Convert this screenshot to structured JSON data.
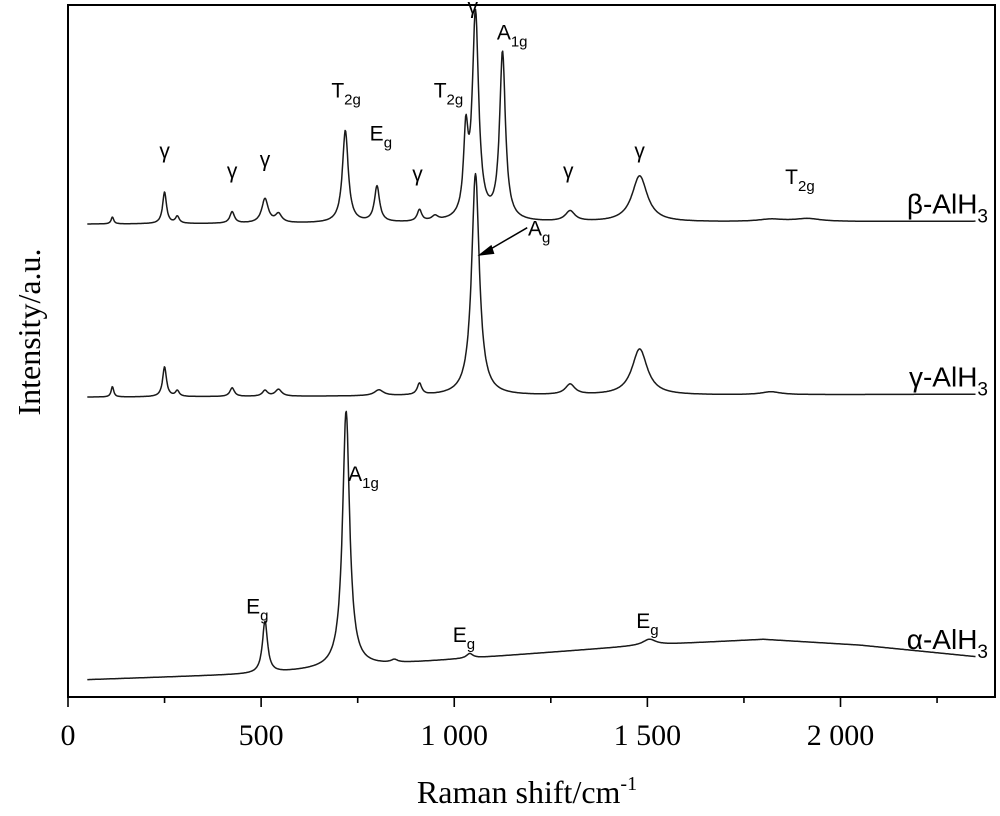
{
  "chart_data": {
    "type": "line",
    "xlabel": "Raman shift/cm",
    "xlabel_sup": "-1",
    "ylabel": "Intensity/a.u.",
    "xlim": [
      0,
      2400
    ],
    "ylim": [
      0,
      12
    ],
    "xticks": [
      {
        "value": 0,
        "label": "0"
      },
      {
        "value": 500,
        "label": "500"
      },
      {
        "value": 1000,
        "label": "1 000"
      },
      {
        "value": 1500,
        "label": "1 500"
      },
      {
        "value": 2000,
        "label": "2 000"
      }
    ],
    "xticks_minor": [
      250,
      750,
      1250,
      1750,
      2250
    ],
    "grid": false,
    "legend": "none",
    "series": [
      {
        "name": "β-AlH",
        "name_sub": "3",
        "baseline": 8.2,
        "background": [
          [
            50,
            0.0
          ],
          [
            2350,
            0.05
          ]
        ],
        "peaks": [
          {
            "x": 115,
            "h": 0.12,
            "w": 4
          },
          {
            "x": 250,
            "h": 0.55,
            "w": 6
          },
          {
            "x": 283,
            "h": 0.12,
            "w": 6
          },
          {
            "x": 425,
            "h": 0.2,
            "w": 7
          },
          {
            "x": 510,
            "h": 0.42,
            "w": 10
          },
          {
            "x": 545,
            "h": 0.15,
            "w": 10
          },
          {
            "x": 718,
            "h": 1.6,
            "w": 9
          },
          {
            "x": 800,
            "h": 0.62,
            "w": 8
          },
          {
            "x": 910,
            "h": 0.2,
            "w": 7
          },
          {
            "x": 950,
            "h": 0.08,
            "w": 10
          },
          {
            "x": 1030,
            "h": 1.35,
            "w": 7
          },
          {
            "x": 1055,
            "h": 3.55,
            "w": 10
          },
          {
            "x": 1125,
            "h": 2.9,
            "w": 9
          },
          {
            "x": 1300,
            "h": 0.18,
            "w": 15
          },
          {
            "x": 1480,
            "h": 0.8,
            "w": 24
          },
          {
            "x": 1820,
            "h": 0.04,
            "w": 40
          },
          {
            "x": 1915,
            "h": 0.05,
            "w": 40
          }
        ],
        "annotations": [
          {
            "x": 250,
            "y": 9.35,
            "text": "γ",
            "sub": ""
          },
          {
            "x": 425,
            "y": 9.0,
            "text": "γ",
            "sub": ""
          },
          {
            "x": 510,
            "y": 9.2,
            "text": "γ",
            "sub": ""
          },
          {
            "x": 720,
            "y": 10.4,
            "text": "T",
            "sub": "2g"
          },
          {
            "x": 810,
            "y": 9.65,
            "text": "E",
            "sub": "g"
          },
          {
            "x": 905,
            "y": 8.95,
            "text": "γ",
            "sub": ""
          },
          {
            "x": 985,
            "y": 10.4,
            "text": "T",
            "sub": "2g"
          },
          {
            "x": 1048,
            "y": 11.85,
            "text": "γ",
            "sub": ""
          },
          {
            "x": 1150,
            "y": 11.4,
            "text": "A",
            "sub": "1g"
          },
          {
            "x": 1295,
            "y": 9.0,
            "text": "γ",
            "sub": ""
          },
          {
            "x": 1480,
            "y": 9.35,
            "text": "γ",
            "sub": ""
          },
          {
            "x": 1895,
            "y": 8.9,
            "text": "T",
            "sub": "2g"
          }
        ]
      },
      {
        "name": "γ-AlH",
        "name_sub": "3",
        "baseline": 5.2,
        "background": [
          [
            50,
            0.0
          ],
          [
            2350,
            0.05
          ]
        ],
        "peaks": [
          {
            "x": 115,
            "h": 0.18,
            "w": 4
          },
          {
            "x": 250,
            "h": 0.52,
            "w": 6
          },
          {
            "x": 283,
            "h": 0.1,
            "w": 6
          },
          {
            "x": 425,
            "h": 0.15,
            "w": 7
          },
          {
            "x": 510,
            "h": 0.1,
            "w": 8
          },
          {
            "x": 545,
            "h": 0.12,
            "w": 10
          },
          {
            "x": 805,
            "h": 0.1,
            "w": 14
          },
          {
            "x": 910,
            "h": 0.2,
            "w": 7
          },
          {
            "x": 1055,
            "h": 3.85,
            "w": 12
          },
          {
            "x": 1300,
            "h": 0.18,
            "w": 15
          },
          {
            "x": 1480,
            "h": 0.8,
            "w": 24
          },
          {
            "x": 1820,
            "h": 0.05,
            "w": 30
          }
        ],
        "annotations": [
          {
            "x": 1220,
            "y": 8.0,
            "text": "A",
            "sub": "g",
            "arrow_to": [
              1060,
              7.65
            ]
          }
        ]
      },
      {
        "name": "α-AlH",
        "name_sub": "3",
        "baseline": 0.3,
        "background": [
          [
            50,
            0.0
          ],
          [
            500,
            0.1
          ],
          [
            1000,
            0.35
          ],
          [
            1500,
            0.6
          ],
          [
            1800,
            0.7
          ],
          [
            2050,
            0.6
          ],
          [
            2350,
            0.4
          ]
        ],
        "peaks": [
          {
            "x": 510,
            "h": 0.9,
            "w": 8
          },
          {
            "x": 720,
            "h": 4.45,
            "w": 11
          },
          {
            "x": 845,
            "h": 0.05,
            "w": 10
          },
          {
            "x": 1040,
            "h": 0.08,
            "w": 10
          },
          {
            "x": 1505,
            "h": 0.1,
            "w": 20
          }
        ],
        "annotations": [
          {
            "x": 490,
            "y": 1.45,
            "text": "E",
            "sub": "g"
          },
          {
            "x": 765,
            "y": 3.75,
            "text": "A",
            "sub": "1g"
          },
          {
            "x": 1025,
            "y": 0.95,
            "text": "E",
            "sub": "g"
          },
          {
            "x": 1500,
            "y": 1.2,
            "text": "E",
            "sub": "g"
          }
        ]
      }
    ]
  }
}
